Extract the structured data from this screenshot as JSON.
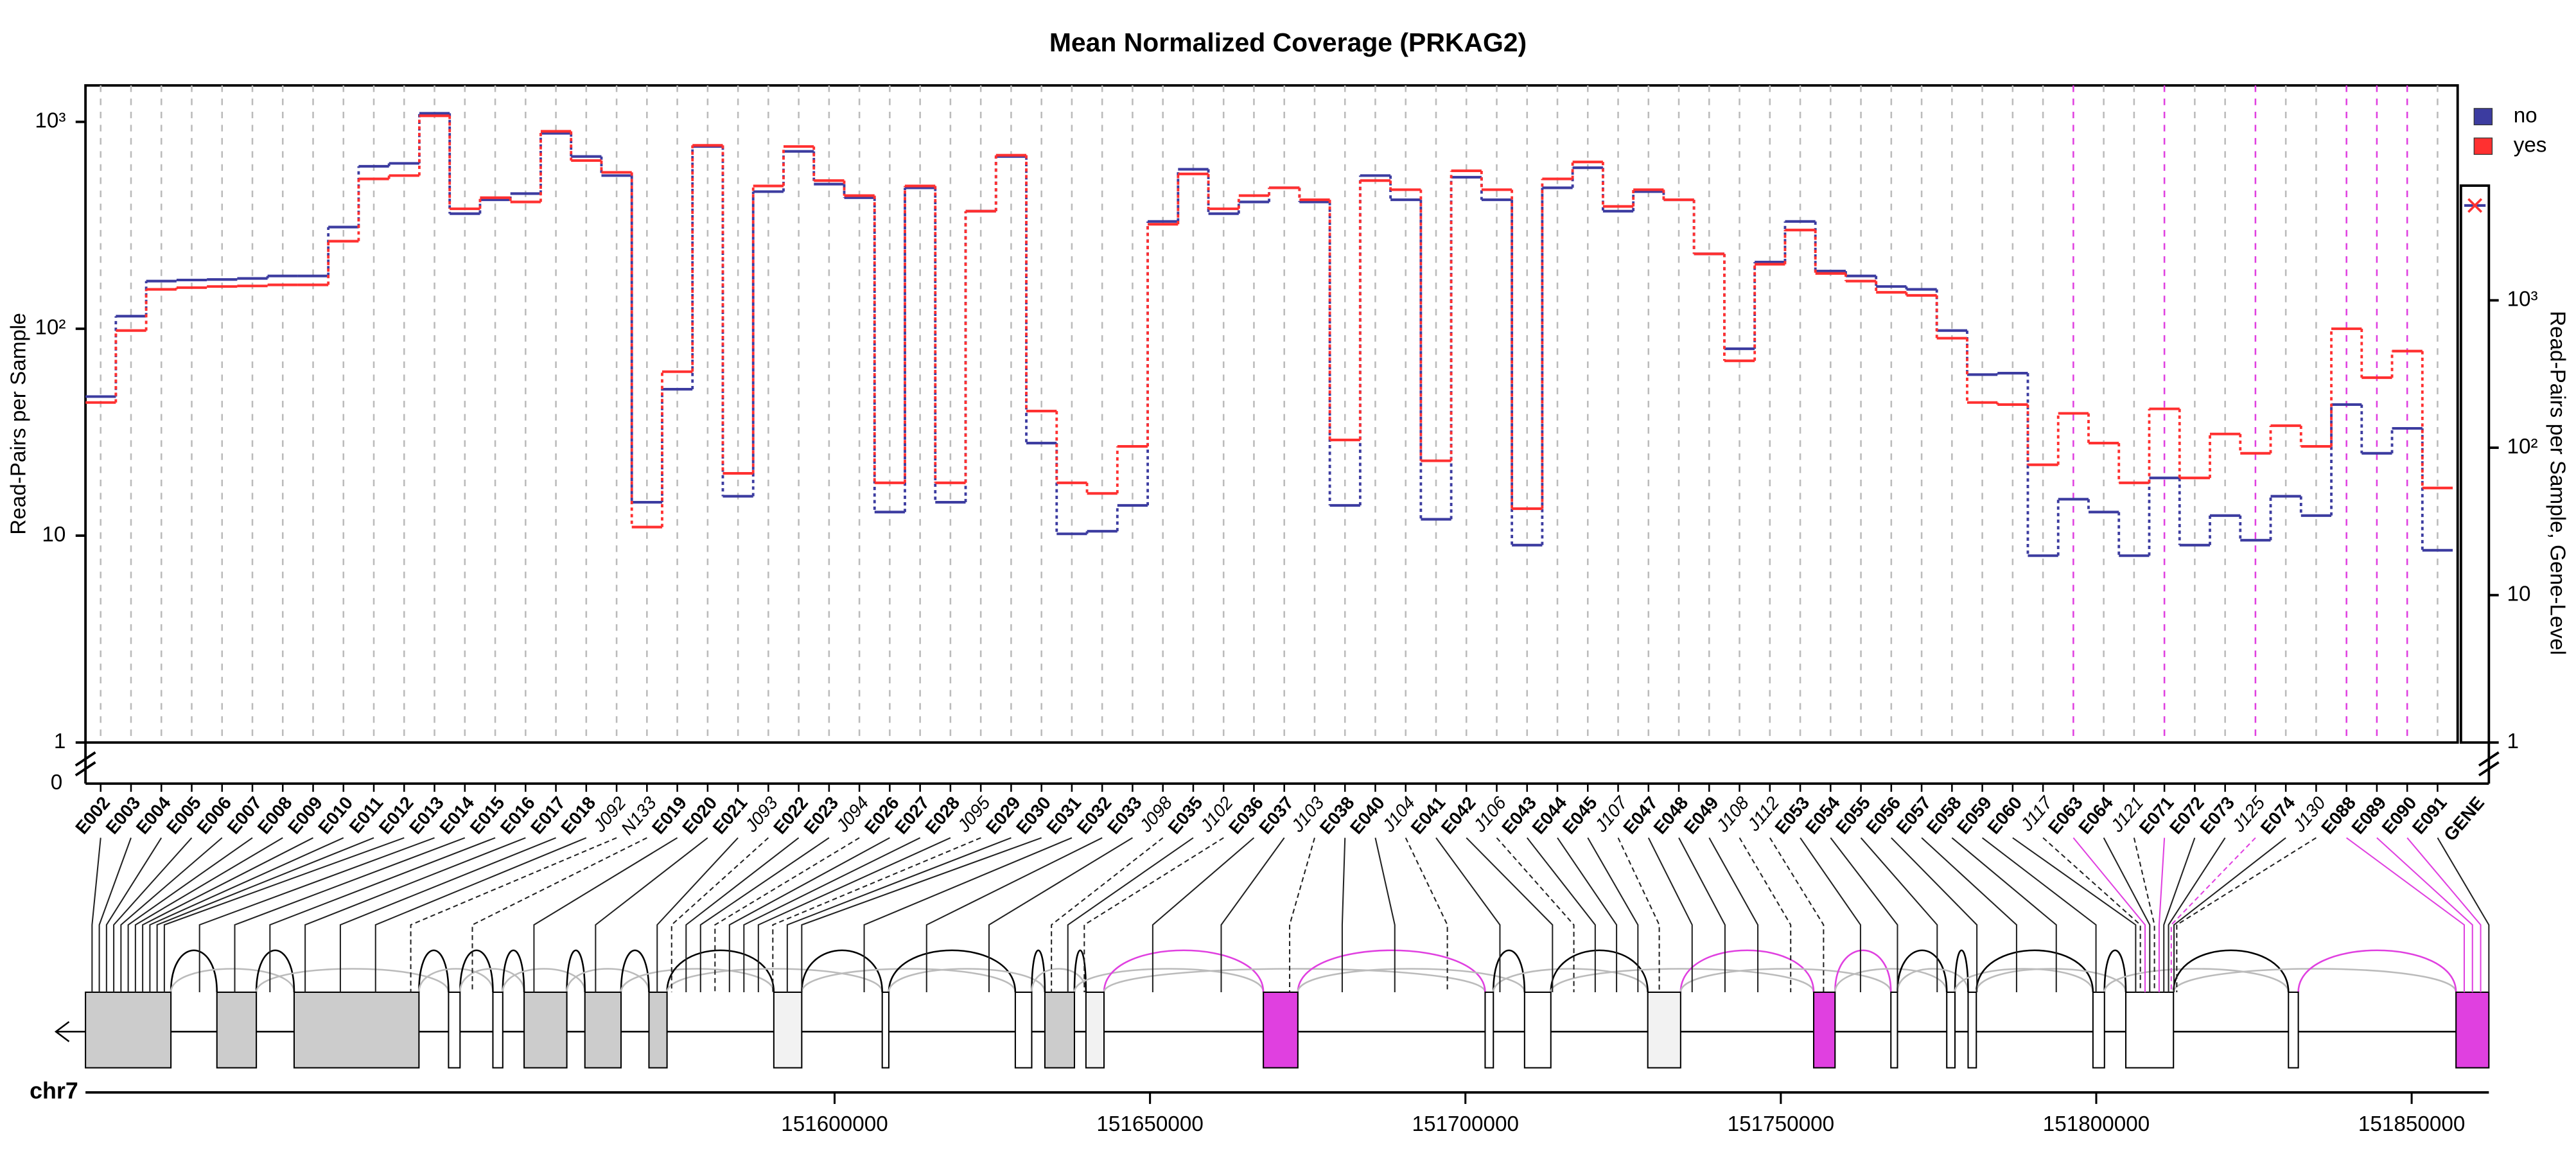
{
  "chart_data": {
    "type": "step",
    "title": "Mean Normalized Coverage (PRKAG2)",
    "ylabel": "Read-Pairs per Sample",
    "y2label": "Read-Pairs per Sample, Gene-Level",
    "log_scale": true,
    "ylim": [
      1,
      1500
    ],
    "yticks": [
      1,
      10,
      {
        "value": 100,
        "label": "10²"
      },
      {
        "value": 1000,
        "label": "10³"
      }
    ],
    "ybreak_label": "0",
    "y2lim": [
      1,
      6000
    ],
    "y2ticks": [
      1,
      10,
      {
        "value": 100,
        "label": "10²"
      },
      {
        "value": 1000,
        "label": "10³"
      }
    ],
    "legend": "top-right",
    "grid": true,
    "categories": [
      "E002",
      "E003",
      "E004",
      "E005",
      "E006",
      "E007",
      "E008",
      "E009",
      "E010",
      "E011",
      "E012",
      "E013",
      "E014",
      "E015",
      "E016",
      "E017",
      "E018",
      "J092",
      "N133",
      "E019",
      "E020",
      "E021",
      "J093",
      "E022",
      "E023",
      "J094",
      "E026",
      "E027",
      "E028",
      "J095",
      "E029",
      "E030",
      "E031",
      "E032",
      "E033",
      "J098",
      "E035",
      "J102",
      "E036",
      "E037",
      "J103",
      "E038",
      "E040",
      "J104",
      "E041",
      "E042",
      "J106",
      "E043",
      "E044",
      "E045",
      "J107",
      "E047",
      "E048",
      "E049",
      "J108",
      "J112",
      "E053",
      "E054",
      "E055",
      "E056",
      "E057",
      "E058",
      "E059",
      "E060",
      "J117",
      "E063",
      "E064",
      "J121",
      "E071",
      "E072",
      "E073",
      "J125",
      "E074",
      "J130",
      "E088",
      "E089",
      "E090",
      "E091"
    ],
    "highlight": [
      "E063",
      "E071",
      "J125",
      "E088",
      "E089",
      "E090"
    ],
    "highlight_color": "#e040e0",
    "gene_category": "GENE",
    "series": [
      {
        "name": "no",
        "color": "#3c3ca0",
        "gene_level": 4400,
        "values": [
          47,
          115,
          170,
          172,
          173,
          175,
          180,
          180,
          310,
          610,
          630,
          1100,
          360,
          420,
          450,
          880,
          680,
          550,
          14.5,
          51,
          760,
          15.5,
          460,
          720,
          500,
          430,
          13,
          480,
          14.5,
          370,
          680,
          28,
          10.2,
          10.5,
          14,
          330,
          590,
          360,
          410,
          480,
          410,
          14,
          550,
          420,
          12,
          540,
          420,
          9,
          480,
          600,
          370,
          460,
          420,
          230,
          80,
          210,
          330,
          190,
          180,
          160,
          155,
          98,
          60,
          61,
          8,
          15,
          13,
          8,
          19,
          9,
          12.5,
          9.5,
          15.5,
          12.5,
          43,
          25,
          33,
          8.5
        ]
      },
      {
        "name": "yes",
        "color": "#ff3030",
        "gene_level": 4400,
        "values": [
          44,
          98,
          155,
          158,
          160,
          161,
          163,
          163,
          265,
          530,
          550,
          1070,
          380,
          430,
          410,
          900,
          650,
          570,
          11,
          62,
          770,
          20,
          490,
          760,
          520,
          440,
          18,
          490,
          18,
          370,
          690,
          40,
          18,
          16,
          27,
          320,
          560,
          380,
          440,
          480,
          420,
          29,
          520,
          470,
          23,
          580,
          470,
          13.5,
          530,
          640,
          390,
          470,
          420,
          230,
          70,
          205,
          300,
          185,
          170,
          150,
          145,
          90,
          44,
          43,
          22,
          39,
          28,
          18,
          41,
          19,
          31,
          25,
          34,
          27,
          100,
          58,
          78,
          17
        ]
      }
    ],
    "genome": {
      "chrom": "chr7",
      "xlim": [
        151481250,
        151862240
      ],
      "xticks": [
        151600000,
        151650000,
        151700000,
        151750000,
        151800000,
        151850000
      ]
    }
  }
}
